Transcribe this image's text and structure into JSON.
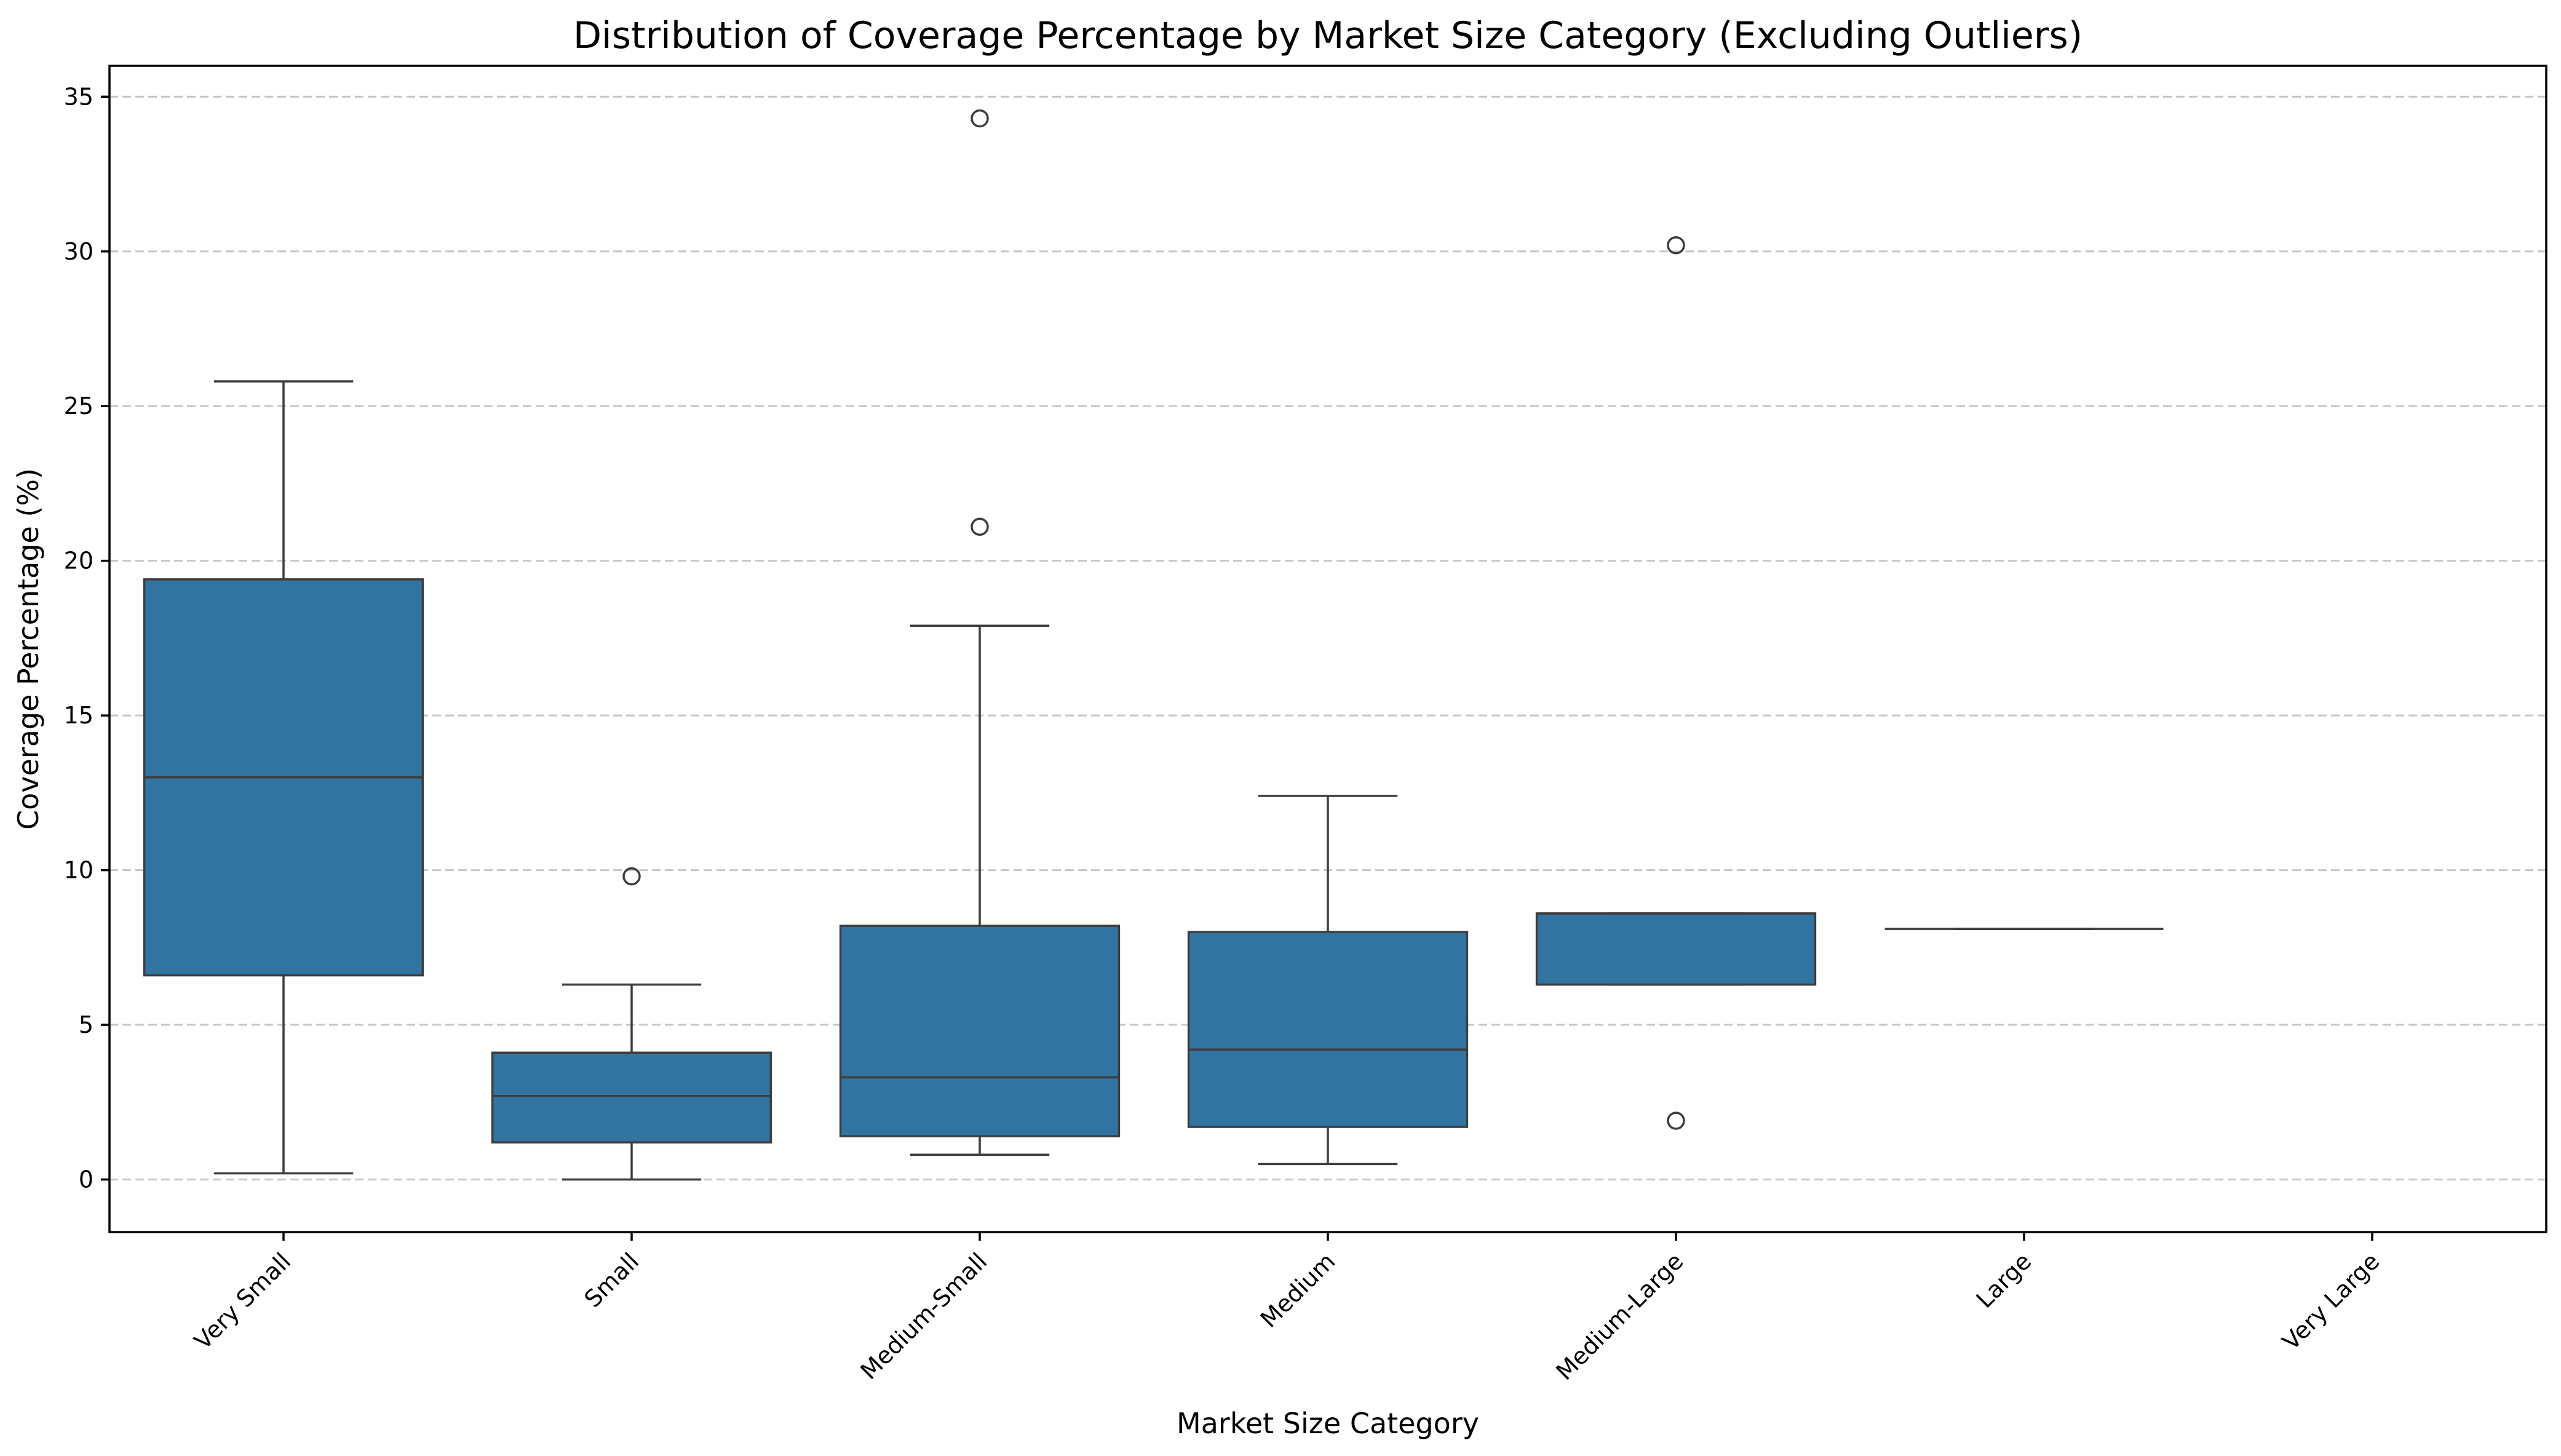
{
  "chart_data": {
    "type": "box",
    "title": "Distribution of Coverage Percentage by Market Size Category (Excluding Outliers)",
    "xlabel": "Market Size Category",
    "ylabel": "Coverage Percentage (%)",
    "ylim": [
      -1.7,
      36.0
    ],
    "yticks": [
      0,
      5,
      10,
      15,
      20,
      25,
      30,
      35
    ],
    "grid": "y dashed",
    "box_color": "#3274a1",
    "categories": [
      "Very Small",
      "Small",
      "Medium-Small",
      "Medium",
      "Medium-Large",
      "Large",
      "Very Large"
    ],
    "boxes": [
      {
        "category": "Very Small",
        "whisker_low": 0.2,
        "q1": 6.6,
        "median": 13.0,
        "q3": 19.4,
        "whisker_high": 25.8,
        "outliers": []
      },
      {
        "category": "Small",
        "whisker_low": 0.0,
        "q1": 1.2,
        "median": 2.7,
        "q3": 4.1,
        "whisker_high": 6.3,
        "outliers": [
          9.8
        ]
      },
      {
        "category": "Medium-Small",
        "whisker_low": 0.8,
        "q1": 1.4,
        "median": 3.3,
        "q3": 8.2,
        "whisker_high": 17.9,
        "outliers": [
          21.1,
          34.3
        ]
      },
      {
        "category": "Medium",
        "whisker_low": 0.5,
        "q1": 1.7,
        "median": 4.2,
        "q3": 8.0,
        "whisker_high": 12.4,
        "outliers": []
      },
      {
        "category": "Medium-Large",
        "whisker_low": 6.3,
        "q1": 6.3,
        "median": 8.6,
        "q3": 8.6,
        "whisker_high": 8.6,
        "outliers": [
          1.9,
          30.2
        ]
      },
      {
        "category": "Large",
        "whisker_low": 8.1,
        "q1": 8.1,
        "median": 8.1,
        "q3": 8.1,
        "whisker_high": 8.1,
        "outliers": []
      },
      {
        "category": "Very Large",
        "outliers": []
      }
    ]
  }
}
